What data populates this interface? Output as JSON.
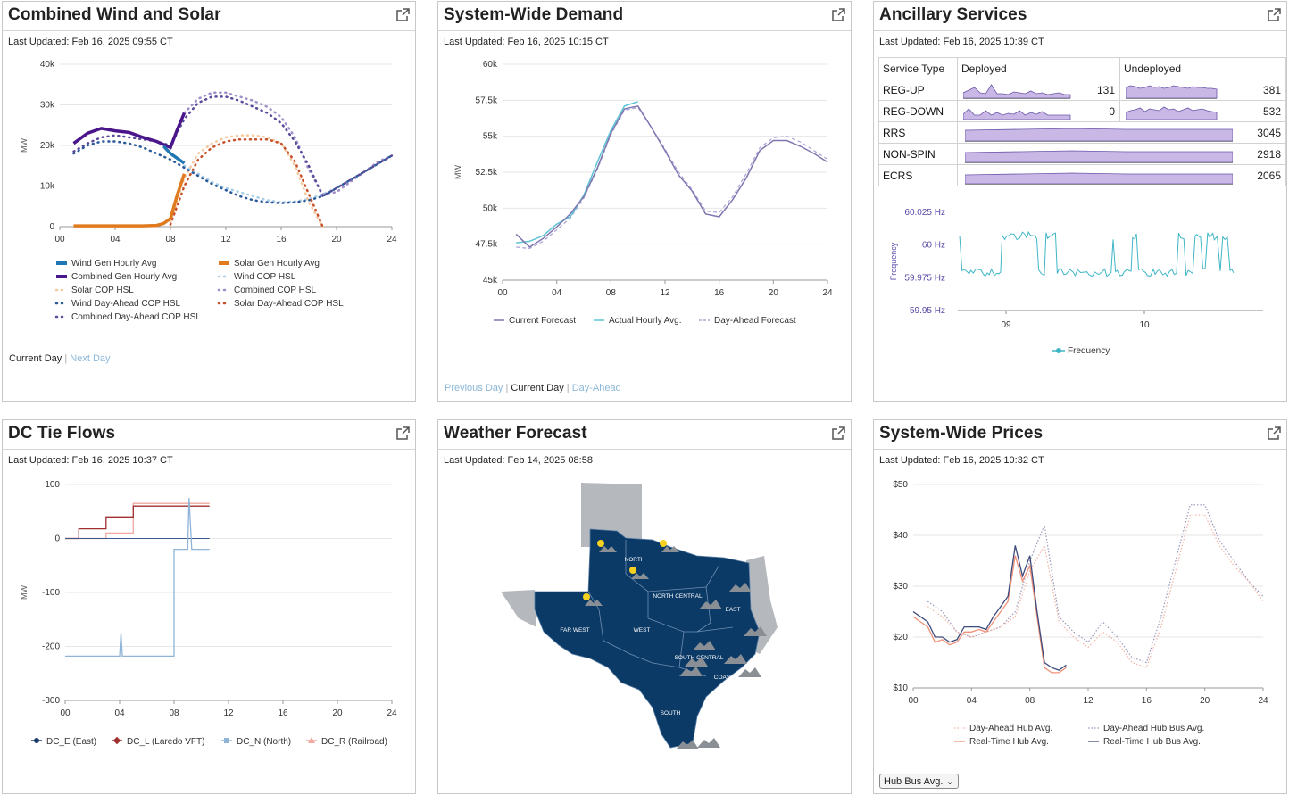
{
  "panels": {
    "wind_solar": {
      "title": "Combined Wind and Solar",
      "updated": "Last Updated: Feb 16, 2025 09:55 CT",
      "legend": [
        "Wind Gen Hourly Avg",
        "Solar Gen Hourly Avg",
        "Combined Gen Hourly Avg",
        "Wind COP HSL",
        "Solar COP HSL",
        "Combined COP HSL",
        "Wind Day-Ahead COP HSL",
        "Solar Day-Ahead COP HSL",
        "Combined Day-Ahead COP HSL"
      ],
      "links": {
        "current": "Current Day",
        "next": "Next Day"
      }
    },
    "demand": {
      "title": "System-Wide Demand",
      "updated": "Last Updated: Feb 16, 2025 10:15 CT",
      "legend": [
        "Current Forecast",
        "Actual Hourly Avg.",
        "Day-Ahead Forecast"
      ],
      "links": {
        "previous": "Previous Day",
        "current": "Current Day",
        "ahead": "Day-Ahead"
      }
    },
    "ancillary": {
      "title": "Ancillary Services",
      "updated": "Last Updated: Feb 16, 2025 10:39 CT",
      "headers": [
        "Service Type",
        "Deployed",
        "Undeployed"
      ],
      "rows": [
        {
          "name": "REG-UP",
          "deployed": "131",
          "undeployed": "381"
        },
        {
          "name": "REG-DOWN",
          "deployed": "0",
          "undeployed": "532"
        },
        {
          "name": "RRS",
          "total": "3045"
        },
        {
          "name": "NON-SPIN",
          "total": "2918"
        },
        {
          "name": "ECRS",
          "total": "2065"
        }
      ],
      "freq_legend": "Frequency"
    },
    "dctie": {
      "title": "DC Tie Flows",
      "updated": "Last Updated: Feb 16, 2025 10:37 CT",
      "legend": [
        "DC_E (East)",
        "DC_L (Laredo VFT)",
        "DC_N (North)",
        "DC_R (Railroad)"
      ]
    },
    "weather": {
      "title": "Weather Forecast",
      "updated": "Last Updated: Feb 14, 2025 08:58",
      "regions": [
        "NORTH",
        "NORTH CENTRAL",
        "EAST",
        "FAR WEST",
        "WEST",
        "SOUTH CENTRAL",
        "COAST",
        "SOUTH"
      ]
    },
    "prices": {
      "title": "System-Wide Prices",
      "updated": "Last Updated: Feb 16, 2025 10:32 CT",
      "legend": [
        "Day-Ahead Hub Avg.",
        "Day-Ahead Hub Bus Avg.",
        "Real-Time Hub Avg.",
        "Real-Time Hub Bus Avg."
      ],
      "select": "Hub Bus Avg."
    }
  },
  "chart_data": [
    {
      "type": "line",
      "id": "wind_solar",
      "ylabel": "MW",
      "xticks": [
        "00",
        "04",
        "08",
        "12",
        "16",
        "20",
        "24"
      ],
      "yticks": [
        "0",
        "10k",
        "20k",
        "30k",
        "40k"
      ],
      "ylim": [
        0,
        40000
      ],
      "xlim": [
        0,
        24
      ],
      "series": [
        {
          "name": "Combined Gen Hourly Avg",
          "x": [
            1,
            2,
            3,
            4,
            5,
            6,
            7,
            8,
            8.5,
            9
          ],
          "y": [
            20500,
            23000,
            24200,
            23600,
            23200,
            22000,
            21000,
            19500,
            24000,
            28000
          ]
        },
        {
          "name": "Wind Gen Hourly Avg",
          "x": [
            7.5,
            8,
            8.5,
            9
          ],
          "y": [
            19800,
            18000,
            16800,
            15600
          ]
        },
        {
          "name": "Solar Gen Hourly Avg",
          "x": [
            1,
            2,
            3,
            4,
            5,
            6,
            7,
            7.5,
            8,
            8.5,
            9
          ],
          "y": [
            200,
            200,
            200,
            200,
            200,
            200,
            300,
            800,
            2000,
            8000,
            13000
          ]
        },
        {
          "name": "Combined COP HSL",
          "x": [
            9,
            10,
            11,
            12,
            13,
            14,
            15,
            16,
            17,
            18,
            19,
            20,
            21,
            22,
            23,
            24
          ],
          "y": [
            28000,
            31500,
            33000,
            33000,
            32000,
            31000,
            29500,
            27000,
            22000,
            14000,
            8000,
            8500,
            11000,
            13500,
            16000,
            17500
          ]
        },
        {
          "name": "Solar COP HSL",
          "x": [
            8,
            9,
            10,
            11,
            12,
            13,
            14,
            15,
            16,
            17,
            18,
            19
          ],
          "y": [
            1000,
            12000,
            18000,
            20500,
            22000,
            22500,
            22500,
            22000,
            20500,
            15000,
            6000,
            0
          ]
        },
        {
          "name": "Wind COP HSL",
          "x": [
            9,
            10,
            11,
            12,
            13,
            14,
            15,
            16,
            17,
            18,
            19,
            20,
            21,
            22,
            23,
            24
          ],
          "y": [
            15000,
            13000,
            11000,
            9500,
            8500,
            7500,
            6500,
            6000,
            6200,
            6800,
            8000,
            9500,
            11500,
            13500,
            15500,
            17500
          ]
        },
        {
          "name": "Wind Day-Ahead COP HSL",
          "x": [
            1,
            2,
            3,
            4,
            5,
            6,
            7,
            8,
            9,
            10,
            11,
            12,
            13,
            14,
            15,
            16,
            17,
            18,
            19,
            20,
            21,
            22,
            23,
            24
          ],
          "y": [
            18000,
            20000,
            21000,
            21000,
            20500,
            19500,
            18000,
            16500,
            14500,
            12500,
            10500,
            9000,
            7500,
            6500,
            6000,
            5800,
            6000,
            6500,
            7500,
            9500,
            11500,
            13500,
            15500,
            17500
          ]
        },
        {
          "name": "Solar Day-Ahead COP HSL",
          "x": [
            8,
            9,
            10,
            11,
            12,
            13,
            14,
            15,
            16,
            17,
            18,
            19
          ],
          "y": [
            500,
            10000,
            16500,
            19500,
            21000,
            21500,
            21500,
            21500,
            20500,
            16000,
            8000,
            0
          ]
        },
        {
          "name": "Combined Day-Ahead COP HSL",
          "x": [
            1,
            2,
            3,
            4,
            5,
            6,
            7,
            8,
            9,
            10,
            11,
            12,
            13,
            14,
            15,
            16,
            17,
            18,
            19,
            20,
            21,
            22,
            23,
            24
          ],
          "y": [
            18500,
            20500,
            22000,
            22500,
            22000,
            21500,
            21000,
            20000,
            26500,
            30500,
            32000,
            32000,
            31000,
            29500,
            28000,
            25500,
            21000,
            15000,
            7500,
            9500,
            11500,
            13500,
            15500,
            17500
          ]
        }
      ]
    },
    {
      "type": "line",
      "id": "demand",
      "ylabel": "MW",
      "xticks": [
        "00",
        "04",
        "08",
        "12",
        "16",
        "20",
        "24"
      ],
      "yticks": [
        "45k",
        "47.5k",
        "50k",
        "52.5k",
        "55k",
        "57.5k",
        "60k"
      ],
      "ylim": [
        45000,
        60000
      ],
      "xlim": [
        0,
        24
      ],
      "series": [
        {
          "name": "Current Forecast",
          "x": [
            1,
            2,
            3,
            4,
            5,
            6,
            7,
            8,
            9,
            10,
            11,
            12,
            13,
            14,
            15,
            16,
            17,
            18,
            19,
            20,
            21,
            22,
            23,
            24
          ],
          "y": [
            48200,
            47300,
            47900,
            48700,
            49600,
            50800,
            52800,
            55200,
            56900,
            57100,
            55600,
            54000,
            52300,
            51200,
            49600,
            49400,
            50600,
            52100,
            54000,
            54700,
            54700,
            54300,
            53800,
            53200
          ]
        },
        {
          "name": "Actual Hourly Avg.",
          "x": [
            1,
            2,
            3,
            4,
            5,
            6,
            7,
            8,
            9,
            10
          ],
          "y": [
            47600,
            47700,
            48100,
            48900,
            49400,
            50900,
            53200,
            55400,
            57100,
            57400
          ]
        },
        {
          "name": "Day-Ahead Forecast",
          "x": [
            1,
            2,
            3,
            4,
            5,
            6,
            7,
            8,
            9,
            10,
            11,
            12,
            13,
            14,
            15,
            16,
            17,
            18,
            19,
            20,
            21,
            22,
            23,
            24
          ],
          "y": [
            47300,
            47200,
            47700,
            48500,
            49300,
            50700,
            52700,
            55100,
            56800,
            57000,
            55600,
            54100,
            52500,
            51300,
            49800,
            49700,
            50800,
            52400,
            54200,
            54900,
            55000,
            54600,
            54000,
            53400
          ]
        }
      ]
    },
    {
      "type": "line",
      "id": "frequency",
      "ylabel": "Frequency",
      "xticks": [
        "09",
        "10"
      ],
      "yticks": [
        "59.95 Hz",
        "59.975 Hz",
        "60 Hz",
        "60.025 Hz"
      ],
      "ylim": [
        59.95,
        60.025
      ],
      "series": [
        {
          "name": "Frequency"
        }
      ]
    },
    {
      "type": "line",
      "id": "dctie",
      "ylabel": "MW",
      "xticks": [
        "00",
        "04",
        "08",
        "12",
        "16",
        "20",
        "24"
      ],
      "yticks": [
        "-300",
        "-200",
        "-100",
        "0",
        "100"
      ],
      "ylim": [
        -300,
        100
      ],
      "xlim": [
        0,
        24
      ],
      "series": [
        {
          "name": "DC_E (East)",
          "x": [
            0,
            10.6
          ],
          "y": [
            0,
            0
          ]
        },
        {
          "name": "DC_L (Laredo VFT)",
          "x": [
            0,
            1,
            1,
            3,
            3,
            5,
            5,
            10.6
          ],
          "y": [
            0,
            0,
            18,
            18,
            40,
            40,
            60,
            60
          ]
        },
        {
          "name": "DC_N (North)",
          "x": [
            0,
            4,
            4.1,
            4.2,
            7.9,
            8,
            8,
            9,
            9.1,
            9.3,
            9.4,
            10.6
          ],
          "y": [
            -218,
            -218,
            -175,
            -218,
            -218,
            -218,
            -20,
            -20,
            75,
            -20,
            -20,
            -20
          ]
        },
        {
          "name": "DC_R (Railroad)",
          "x": [
            0,
            3,
            3,
            5,
            5,
            10.6
          ],
          "y": [
            0,
            0,
            10,
            10,
            65,
            65
          ]
        }
      ]
    },
    {
      "type": "line",
      "id": "prices",
      "yticks": [
        "$10",
        "$20",
        "$30",
        "$40",
        "$50"
      ],
      "xticks": [
        "00",
        "04",
        "08",
        "12",
        "16",
        "20",
        "24"
      ],
      "ylim": [
        10,
        50
      ],
      "xlim": [
        0,
        24
      ],
      "series": [
        {
          "name": "Day-Ahead Hub Avg.",
          "x": [
            1,
            2,
            3,
            4,
            5,
            6,
            7,
            8,
            9,
            10,
            11,
            12,
            13,
            14,
            15,
            16,
            17,
            18,
            19,
            20,
            21,
            22,
            23,
            24
          ],
          "y": [
            26,
            24,
            21,
            20,
            21,
            22,
            24,
            33,
            38,
            23,
            20,
            18,
            21,
            19,
            15,
            14,
            22,
            33,
            44,
            44,
            38,
            34,
            31,
            27
          ]
        },
        {
          "name": "Day-Ahead Hub Bus Avg.",
          "x": [
            1,
            2,
            3,
            4,
            5,
            6,
            7,
            8,
            9,
            10,
            11,
            12,
            13,
            14,
            15,
            16,
            17,
            18,
            19,
            20,
            21,
            22,
            23,
            24
          ],
          "y": [
            27,
            25,
            21,
            20,
            21,
            22,
            25,
            35,
            42,
            24,
            21,
            19,
            23,
            20,
            16,
            15,
            24,
            35,
            46,
            46,
            39,
            35,
            31,
            28
          ]
        },
        {
          "name": "Real-Time Hub Avg.",
          "x": [
            0,
            0.5,
            1,
            1.5,
            2,
            2.5,
            3,
            3.5,
            4,
            4.5,
            5,
            5.5,
            6,
            6.5,
            7,
            7.5,
            8,
            8.5,
            9,
            9.5,
            10,
            10.5
          ],
          "y": [
            24,
            23,
            22,
            19,
            19.5,
            18.5,
            19,
            21,
            21,
            21.5,
            21,
            23,
            25,
            27,
            36,
            31,
            34,
            24,
            14,
            13,
            13,
            14
          ]
        },
        {
          "name": "Real-Time Hub Bus Avg.",
          "x": [
            0,
            0.5,
            1,
            1.5,
            2,
            2.5,
            3,
            3.5,
            4,
            4.5,
            5,
            5.5,
            6,
            6.5,
            7,
            7.5,
            8,
            8.5,
            9,
            9.5,
            10,
            10.5
          ],
          "y": [
            25,
            24,
            23,
            20,
            20,
            19,
            19.5,
            22,
            22,
            22,
            21.5,
            24,
            26,
            28,
            38,
            32,
            36,
            25,
            15,
            14,
            13.5,
            14.5
          ]
        }
      ]
    }
  ]
}
